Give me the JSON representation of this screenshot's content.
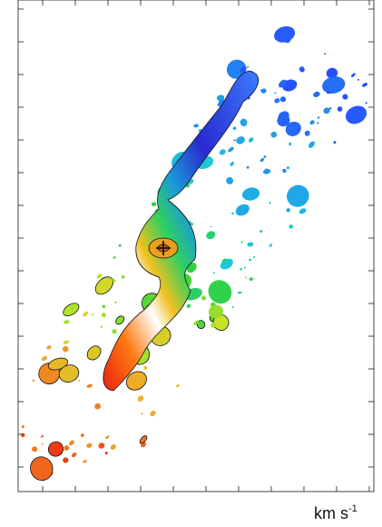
{
  "panel": {
    "unit_text": "km s",
    "unit_exponent": "-1"
  }
}
